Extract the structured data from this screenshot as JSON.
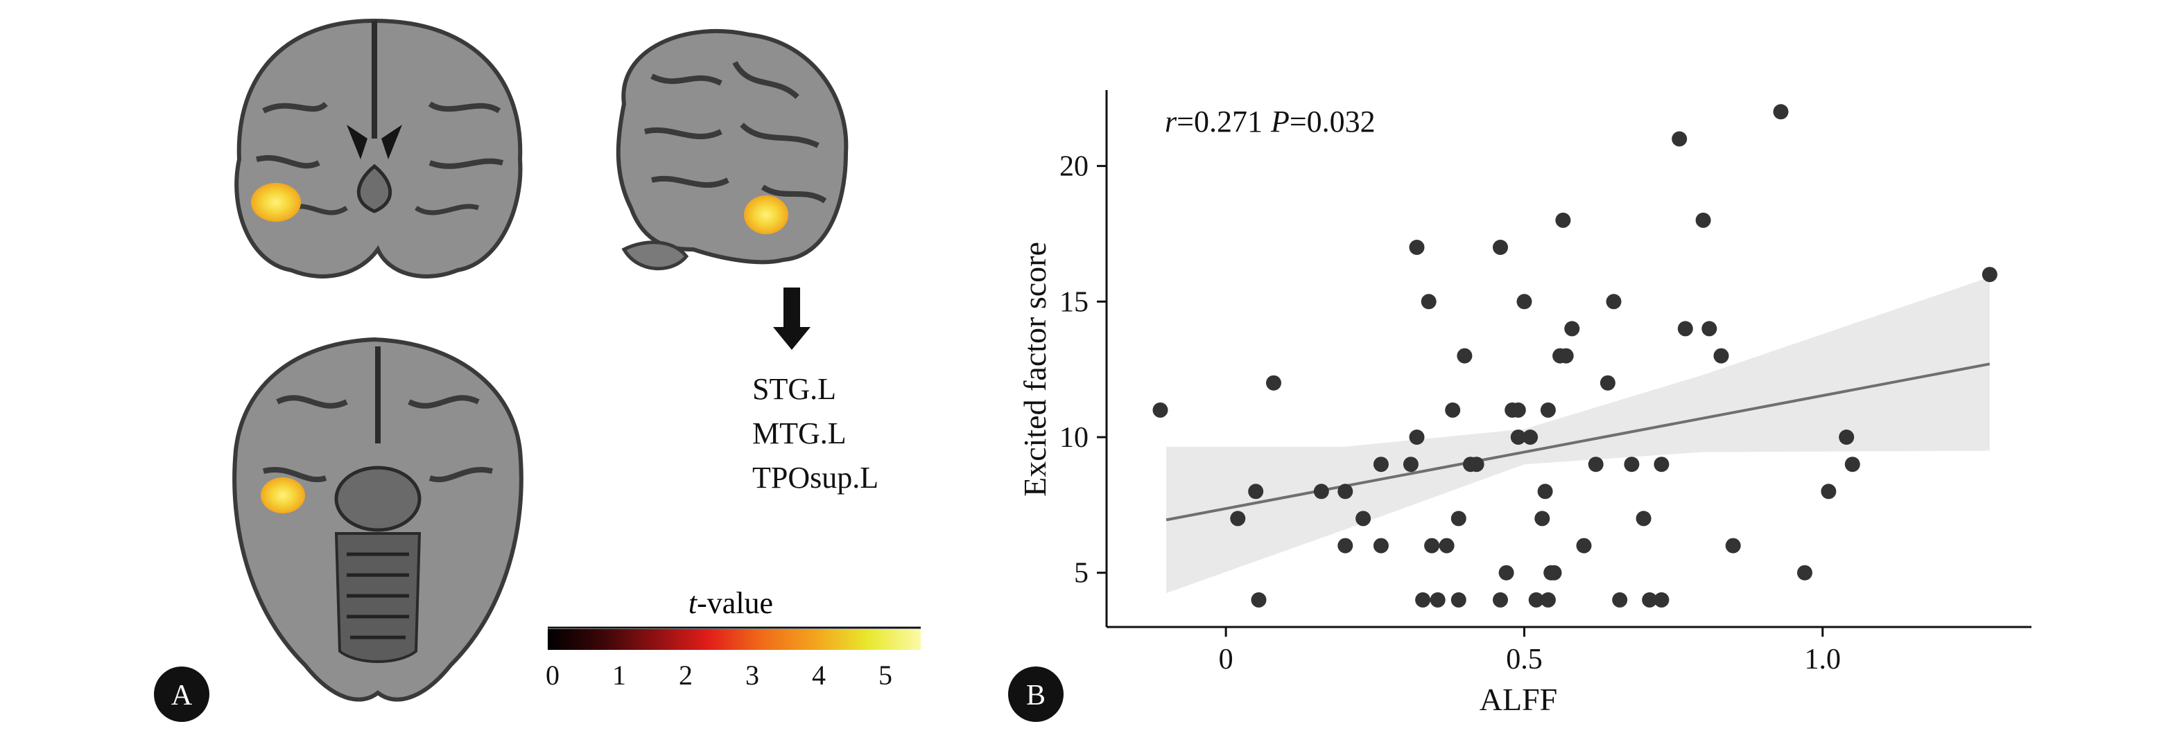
{
  "panel_a": {
    "badge": "A",
    "region_labels": [
      "STG.L",
      "MTG.L",
      "TPOsup.L"
    ],
    "colorbar": {
      "title_italic": "t",
      "title_rest": "-value",
      "ticks": [
        "0",
        "1",
        "2",
        "3",
        "4",
        "5"
      ],
      "colors": [
        "#000000",
        "#3a0608",
        "#8e1012",
        "#e01d1a",
        "#f06a18",
        "#f4a21e",
        "#e8e82c",
        "#fafaa8"
      ]
    },
    "views": [
      "coronal",
      "sagittal",
      "axial"
    ],
    "activation_colors": [
      "#f2a81e",
      "#f6d63a",
      "#fff27a"
    ]
  },
  "panel_b": {
    "badge": "B",
    "stats_r_symbol": "r",
    "stats_r_value": "=0.271",
    "stats_p_symbol": "P",
    "stats_p_value": "=0.032"
  },
  "chart_data": {
    "type": "scatter",
    "title": "",
    "xlabel": "ALFF",
    "ylabel": "Excited factor score",
    "xlim": [
      -0.2,
      1.35
    ],
    "ylim": [
      3.0,
      22.8
    ],
    "xticks": [
      0,
      0.5,
      1.0
    ],
    "xtick_labels": [
      "0",
      "0.5",
      "1.0"
    ],
    "yticks": [
      5,
      10,
      15,
      20
    ],
    "ytick_labels": [
      "5",
      "10",
      "15",
      "20"
    ],
    "annotation": "r=0.271 P=0.032",
    "regression": {
      "x": [
        -0.1,
        1.28
      ],
      "y": [
        6.95,
        12.7
      ]
    },
    "confidence_band": {
      "x": [
        -0.1,
        0.2,
        0.5,
        0.8,
        1.28
      ],
      "upper": [
        9.65,
        9.65,
        10.3,
        12.3,
        15.9
      ],
      "lower": [
        4.25,
        6.6,
        9.0,
        9.45,
        9.5
      ]
    },
    "points": [
      {
        "x": -0.11,
        "y": 11
      },
      {
        "x": 0.02,
        "y": 7
      },
      {
        "x": 0.05,
        "y": 8
      },
      {
        "x": 0.055,
        "y": 4
      },
      {
        "x": 0.08,
        "y": 12
      },
      {
        "x": 0.16,
        "y": 8
      },
      {
        "x": 0.2,
        "y": 6
      },
      {
        "x": 0.2,
        "y": 8
      },
      {
        "x": 0.23,
        "y": 7
      },
      {
        "x": 0.26,
        "y": 6
      },
      {
        "x": 0.26,
        "y": 9
      },
      {
        "x": 0.31,
        "y": 9
      },
      {
        "x": 0.32,
        "y": 10
      },
      {
        "x": 0.32,
        "y": 17
      },
      {
        "x": 0.33,
        "y": 4
      },
      {
        "x": 0.34,
        "y": 15
      },
      {
        "x": 0.345,
        "y": 6
      },
      {
        "x": 0.355,
        "y": 4
      },
      {
        "x": 0.37,
        "y": 6
      },
      {
        "x": 0.38,
        "y": 11
      },
      {
        "x": 0.39,
        "y": 7
      },
      {
        "x": 0.39,
        "y": 4
      },
      {
        "x": 0.4,
        "y": 13
      },
      {
        "x": 0.41,
        "y": 9
      },
      {
        "x": 0.42,
        "y": 9
      },
      {
        "x": 0.46,
        "y": 17
      },
      {
        "x": 0.46,
        "y": 4
      },
      {
        "x": 0.47,
        "y": 5
      },
      {
        "x": 0.48,
        "y": 11
      },
      {
        "x": 0.49,
        "y": 11
      },
      {
        "x": 0.49,
        "y": 10
      },
      {
        "x": 0.5,
        "y": 15
      },
      {
        "x": 0.51,
        "y": 10
      },
      {
        "x": 0.52,
        "y": 4
      },
      {
        "x": 0.53,
        "y": 7
      },
      {
        "x": 0.535,
        "y": 8
      },
      {
        "x": 0.54,
        "y": 11
      },
      {
        "x": 0.54,
        "y": 4
      },
      {
        "x": 0.545,
        "y": 5
      },
      {
        "x": 0.55,
        "y": 5
      },
      {
        "x": 0.56,
        "y": 13
      },
      {
        "x": 0.565,
        "y": 18
      },
      {
        "x": 0.57,
        "y": 13
      },
      {
        "x": 0.58,
        "y": 14
      },
      {
        "x": 0.6,
        "y": 6
      },
      {
        "x": 0.62,
        "y": 9
      },
      {
        "x": 0.64,
        "y": 12
      },
      {
        "x": 0.65,
        "y": 15
      },
      {
        "x": 0.66,
        "y": 4
      },
      {
        "x": 0.68,
        "y": 9
      },
      {
        "x": 0.7,
        "y": 7
      },
      {
        "x": 0.71,
        "y": 4
      },
      {
        "x": 0.73,
        "y": 4
      },
      {
        "x": 0.73,
        "y": 9
      },
      {
        "x": 0.76,
        "y": 21
      },
      {
        "x": 0.77,
        "y": 14
      },
      {
        "x": 0.8,
        "y": 18
      },
      {
        "x": 0.81,
        "y": 14
      },
      {
        "x": 0.83,
        "y": 13
      },
      {
        "x": 0.85,
        "y": 6
      },
      {
        "x": 0.93,
        "y": 22
      },
      {
        "x": 0.97,
        "y": 5
      },
      {
        "x": 1.01,
        "y": 8
      },
      {
        "x": 1.04,
        "y": 10
      },
      {
        "x": 1.05,
        "y": 9
      },
      {
        "x": 1.28,
        "y": 16
      }
    ]
  }
}
